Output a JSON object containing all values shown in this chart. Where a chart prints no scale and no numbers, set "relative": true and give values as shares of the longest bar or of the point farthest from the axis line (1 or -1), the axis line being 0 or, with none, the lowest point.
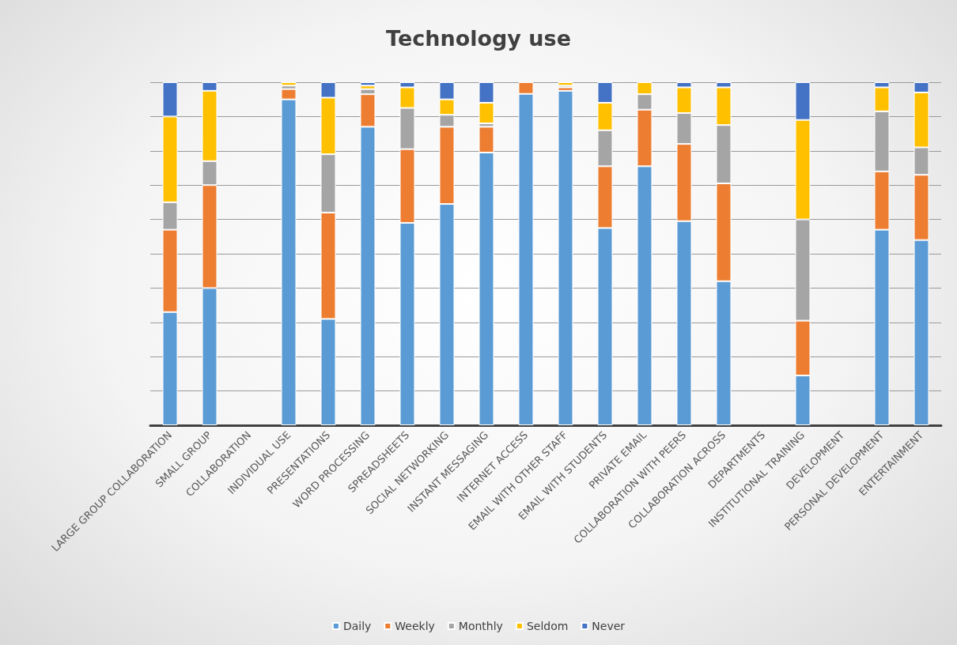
{
  "chart_data": {
    "type": "bar",
    "title": "Technology use",
    "stacked": true,
    "relative": true,
    "grid": "y",
    "legend": "bottom",
    "categories": [
      "LARGE GROUP COLLABORATION",
      "SMALL GROUP",
      "COLLABORATION",
      "INDIVIDUAL USE",
      "PRESENTATIONS",
      "WORD PROCESSING",
      "SPREADSHEETS",
      "SOCIAL NETWORKING",
      "INSTANT MESSAGING",
      "INTERNET ACCESS",
      "EMAIL WITH OTHER STAFF",
      "EMAIL WITH STUDENTS",
      "PRIVATE EMAIL",
      "COLLABORATION WITH PEERS",
      "COLLABORATION ACROSS",
      "DEPARTMENTS",
      "INSTITUTIONAL TRAINING",
      "DEVELOPMENT",
      "PERSONAL DEVELOPMENT",
      "ENTERTAINMENT"
    ],
    "series": [
      {
        "name": "Daily",
        "color": "#5b9bd5",
        "values": [
          0.33,
          0.4,
          null,
          0.95,
          0.31,
          0.87,
          0.59,
          0.645,
          0.795,
          0.966,
          0.975,
          0.575,
          0.755,
          0.595,
          0.42,
          null,
          0.145,
          null,
          0.57,
          0.54
        ]
      },
      {
        "name": "Weekly",
        "color": "#ed7d31",
        "values": [
          0.24,
          0.3,
          null,
          0.03,
          0.31,
          0.095,
          0.215,
          0.225,
          0.075,
          0.034,
          0.01,
          0.18,
          0.165,
          0.225,
          0.285,
          null,
          0.16,
          null,
          0.17,
          0.19
        ]
      },
      {
        "name": "Monthly",
        "color": "#a5a5a5",
        "values": [
          0.08,
          0.07,
          null,
          0.01,
          0.17,
          0.015,
          0.12,
          0.035,
          0.01,
          null,
          0.005,
          0.105,
          0.045,
          0.09,
          0.17,
          null,
          0.295,
          null,
          0.175,
          0.08
        ]
      },
      {
        "name": "Seldom",
        "color": "#ffc000",
        "values": [
          0.25,
          0.205,
          null,
          0.01,
          0.165,
          0.01,
          0.06,
          0.045,
          0.06,
          null,
          0.01,
          0.08,
          0.035,
          0.075,
          0.11,
          null,
          0.29,
          null,
          0.07,
          0.16
        ]
      },
      {
        "name": "Never",
        "color": "#4472c4",
        "values": [
          0.1,
          0.025,
          null,
          null,
          0.045,
          0.01,
          0.015,
          0.05,
          0.06,
          null,
          null,
          0.06,
          null,
          0.015,
          0.015,
          null,
          0.11,
          null,
          0.015,
          0.03
        ]
      }
    ]
  }
}
